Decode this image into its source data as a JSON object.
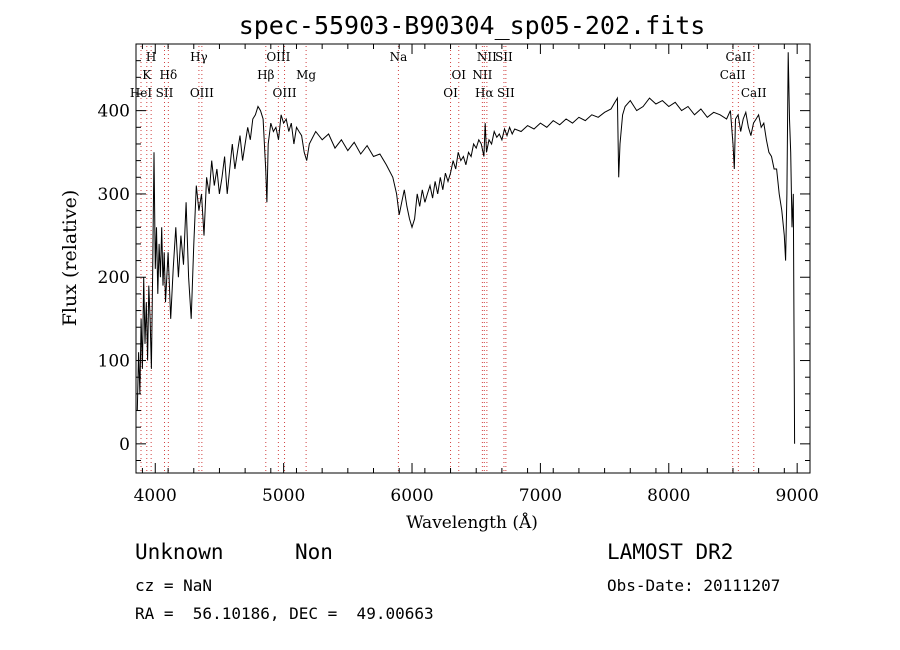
{
  "chart_data": {
    "type": "line",
    "title": "spec-55903-B90304_sp05-202.fits",
    "xlabel": "Wavelength (Å)",
    "ylabel": "Flux (relative)",
    "xlim": [
      3850,
      9100
    ],
    "ylim": [
      -35,
      480
    ],
    "x_ticks": [
      4000,
      5000,
      6000,
      7000,
      8000,
      9000
    ],
    "y_ticks": [
      0,
      100,
      200,
      300,
      400
    ],
    "grid": false,
    "series": [
      {
        "color": "#000000",
        "points": [
          [
            3860,
            40
          ],
          [
            3870,
            110
          ],
          [
            3880,
            60
          ],
          [
            3890,
            150
          ],
          [
            3900,
            90
          ],
          [
            3910,
            200
          ],
          [
            3920,
            120
          ],
          [
            3930,
            170
          ],
          [
            3940,
            100
          ],
          [
            3950,
            190
          ],
          [
            3960,
            150
          ],
          [
            3970,
            90
          ],
          [
            3980,
            210
          ],
          [
            3990,
            350
          ],
          [
            4000,
            210
          ],
          [
            4010,
            260
          ],
          [
            4020,
            180
          ],
          [
            4030,
            240
          ],
          [
            4040,
            200
          ],
          [
            4050,
            260
          ],
          [
            4060,
            190
          ],
          [
            4070,
            230
          ],
          [
            4080,
            170
          ],
          [
            4100,
            230
          ],
          [
            4120,
            150
          ],
          [
            4140,
            210
          ],
          [
            4160,
            260
          ],
          [
            4180,
            200
          ],
          [
            4200,
            250
          ],
          [
            4220,
            215
          ],
          [
            4240,
            290
          ],
          [
            4260,
            200
          ],
          [
            4280,
            150
          ],
          [
            4300,
            240
          ],
          [
            4320,
            310
          ],
          [
            4340,
            280
          ],
          [
            4360,
            300
          ],
          [
            4380,
            250
          ],
          [
            4400,
            320
          ],
          [
            4420,
            300
          ],
          [
            4440,
            340
          ],
          [
            4460,
            310
          ],
          [
            4480,
            330
          ],
          [
            4500,
            300
          ],
          [
            4520,
            320
          ],
          [
            4540,
            345
          ],
          [
            4560,
            300
          ],
          [
            4580,
            330
          ],
          [
            4600,
            360
          ],
          [
            4620,
            330
          ],
          [
            4640,
            350
          ],
          [
            4660,
            370
          ],
          [
            4680,
            340
          ],
          [
            4700,
            360
          ],
          [
            4720,
            380
          ],
          [
            4740,
            365
          ],
          [
            4760,
            390
          ],
          [
            4780,
            395
          ],
          [
            4800,
            405
          ],
          [
            4820,
            400
          ],
          [
            4840,
            390
          ],
          [
            4860,
            330
          ],
          [
            4870,
            290
          ],
          [
            4880,
            360
          ],
          [
            4900,
            385
          ],
          [
            4920,
            375
          ],
          [
            4940,
            380
          ],
          [
            4960,
            365
          ],
          [
            4980,
            395
          ],
          [
            5000,
            385
          ],
          [
            5020,
            390
          ],
          [
            5040,
            375
          ],
          [
            5060,
            385
          ],
          [
            5080,
            360
          ],
          [
            5100,
            380
          ],
          [
            5120,
            375
          ],
          [
            5140,
            370
          ],
          [
            5160,
            350
          ],
          [
            5180,
            340
          ],
          [
            5200,
            360
          ],
          [
            5250,
            375
          ],
          [
            5300,
            365
          ],
          [
            5350,
            372
          ],
          [
            5400,
            355
          ],
          [
            5450,
            365
          ],
          [
            5500,
            352
          ],
          [
            5550,
            362
          ],
          [
            5600,
            348
          ],
          [
            5650,
            358
          ],
          [
            5700,
            345
          ],
          [
            5750,
            348
          ],
          [
            5800,
            335
          ],
          [
            5850,
            320
          ],
          [
            5880,
            300
          ],
          [
            5900,
            275
          ],
          [
            5920,
            290
          ],
          [
            5940,
            305
          ],
          [
            5960,
            285
          ],
          [
            5980,
            270
          ],
          [
            6000,
            260
          ],
          [
            6020,
            270
          ],
          [
            6040,
            300
          ],
          [
            6060,
            285
          ],
          [
            6080,
            305
          ],
          [
            6100,
            290
          ],
          [
            6120,
            300
          ],
          [
            6140,
            310
          ],
          [
            6160,
            295
          ],
          [
            6180,
            315
          ],
          [
            6200,
            300
          ],
          [
            6220,
            320
          ],
          [
            6240,
            305
          ],
          [
            6260,
            325
          ],
          [
            6280,
            315
          ],
          [
            6300,
            325
          ],
          [
            6320,
            340
          ],
          [
            6340,
            330
          ],
          [
            6360,
            350
          ],
          [
            6380,
            340
          ],
          [
            6400,
            345
          ],
          [
            6420,
            335
          ],
          [
            6440,
            350
          ],
          [
            6460,
            345
          ],
          [
            6480,
            360
          ],
          [
            6500,
            355
          ],
          [
            6520,
            365
          ],
          [
            6540,
            360
          ],
          [
            6560,
            345
          ],
          [
            6570,
            385
          ],
          [
            6580,
            350
          ],
          [
            6600,
            365
          ],
          [
            6620,
            360
          ],
          [
            6640,
            375
          ],
          [
            6660,
            368
          ],
          [
            6680,
            372
          ],
          [
            6700,
            365
          ],
          [
            6720,
            378
          ],
          [
            6740,
            370
          ],
          [
            6760,
            380
          ],
          [
            6780,
            372
          ],
          [
            6800,
            378
          ],
          [
            6850,
            375
          ],
          [
            6900,
            382
          ],
          [
            6950,
            378
          ],
          [
            7000,
            385
          ],
          [
            7050,
            380
          ],
          [
            7100,
            388
          ],
          [
            7150,
            383
          ],
          [
            7200,
            390
          ],
          [
            7250,
            385
          ],
          [
            7300,
            392
          ],
          [
            7350,
            388
          ],
          [
            7400,
            395
          ],
          [
            7450,
            392
          ],
          [
            7500,
            398
          ],
          [
            7550,
            402
          ],
          [
            7580,
            410
          ],
          [
            7600,
            415
          ],
          [
            7610,
            320
          ],
          [
            7620,
            360
          ],
          [
            7640,
            395
          ],
          [
            7660,
            405
          ],
          [
            7700,
            412
          ],
          [
            7750,
            400
          ],
          [
            7800,
            405
          ],
          [
            7850,
            415
          ],
          [
            7900,
            408
          ],
          [
            7950,
            412
          ],
          [
            8000,
            405
          ],
          [
            8050,
            410
          ],
          [
            8100,
            400
          ],
          [
            8150,
            405
          ],
          [
            8200,
            395
          ],
          [
            8250,
            402
          ],
          [
            8300,
            392
          ],
          [
            8350,
            398
          ],
          [
            8400,
            395
          ],
          [
            8450,
            390
          ],
          [
            8480,
            400
          ],
          [
            8500,
            360
          ],
          [
            8510,
            330
          ],
          [
            8520,
            390
          ],
          [
            8540,
            395
          ],
          [
            8560,
            375
          ],
          [
            8580,
            390
          ],
          [
            8600,
            398
          ],
          [
            8620,
            380
          ],
          [
            8640,
            370
          ],
          [
            8660,
            385
          ],
          [
            8680,
            390
          ],
          [
            8700,
            395
          ],
          [
            8720,
            380
          ],
          [
            8740,
            385
          ],
          [
            8760,
            365
          ],
          [
            8780,
            350
          ],
          [
            8800,
            345
          ],
          [
            8820,
            330
          ],
          [
            8840,
            330
          ],
          [
            8860,
            300
          ],
          [
            8880,
            280
          ],
          [
            8900,
            250
          ],
          [
            8910,
            220
          ],
          [
            8920,
            300
          ],
          [
            8930,
            470
          ],
          [
            8940,
            390
          ],
          [
            8950,
            350
          ],
          [
            8960,
            260
          ],
          [
            8970,
            300
          ],
          [
            8980,
            0
          ]
        ]
      }
    ],
    "line_markers": [
      {
        "label": "HeI",
        "x": 3889,
        "row": 3
      },
      {
        "label": "K",
        "x": 3934,
        "row": 2
      },
      {
        "label": "H",
        "x": 3968,
        "row": 1
      },
      {
        "label": "SII",
        "x": 4072,
        "row": 3
      },
      {
        "label": "Hδ",
        "x": 4102,
        "row": 2
      },
      {
        "label": "Hγ",
        "x": 4340,
        "row": 1
      },
      {
        "label": "OIII",
        "x": 4363,
        "row": 3
      },
      {
        "label": "Hβ",
        "x": 4861,
        "row": 2
      },
      {
        "label": "OIII",
        "x": 4959,
        "row": 1
      },
      {
        "label": "OIII",
        "x": 5007,
        "row": 3
      },
      {
        "label": "Mg",
        "x": 5175,
        "row": 2
      },
      {
        "label": "Na",
        "x": 5894,
        "row": 1
      },
      {
        "label": "OI",
        "x": 6300,
        "row": 3
      },
      {
        "label": "OI",
        "x": 6364,
        "row": 2
      },
      {
        "label": "NII",
        "x": 6548,
        "row": 2
      },
      {
        "label": "Hα",
        "x": 6563,
        "row": 3
      },
      {
        "label": "NII",
        "x": 6583,
        "row": 1
      },
      {
        "label": "SII",
        "x": 6716,
        "row": 1
      },
      {
        "label": "SII",
        "x": 6731,
        "row": 3
      },
      {
        "label": "CaII",
        "x": 8498,
        "row": 2
      },
      {
        "label": "CaII",
        "x": 8542,
        "row": 1
      },
      {
        "label": "CaII",
        "x": 8662,
        "row": 3
      }
    ]
  },
  "info": {
    "class_label": "Unknown",
    "subclass_label": "Non",
    "survey": "LAMOST DR2",
    "redshift": "cz = NaN",
    "obs_date": "Obs-Date: 20111207",
    "coords": "RA =  56.10186, DEC =  49.00663"
  }
}
